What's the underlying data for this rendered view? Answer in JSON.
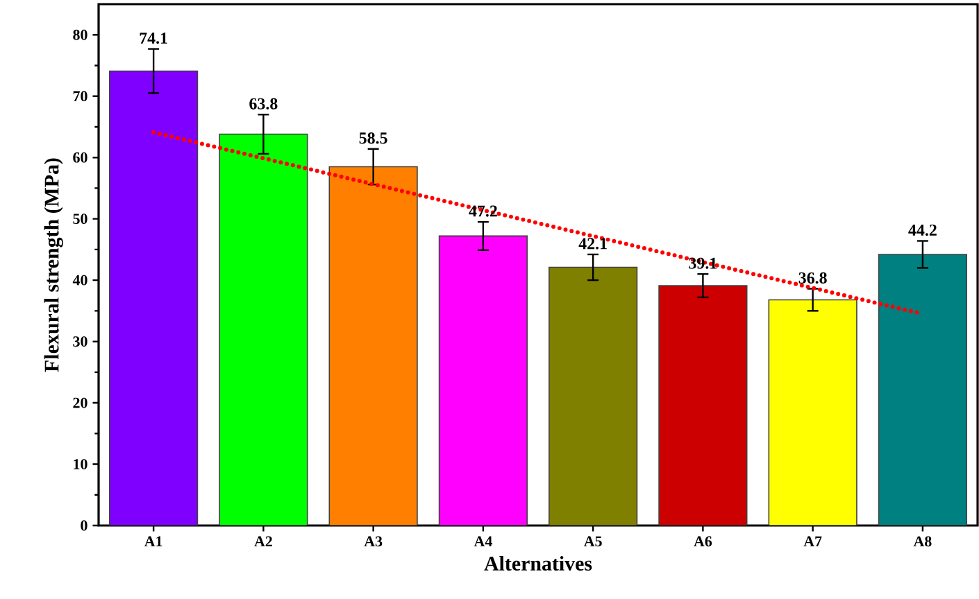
{
  "chart_data": {
    "type": "bar",
    "xlabel": "Alternatives",
    "ylabel": "Flexural strength (MPa)",
    "categories": [
      "A1",
      "A2",
      "A3",
      "A4",
      "A5",
      "A6",
      "A7",
      "A8"
    ],
    "values": [
      74.1,
      63.8,
      58.5,
      47.2,
      42.1,
      39.1,
      36.8,
      44.2
    ],
    "errors": [
      3.6,
      3.2,
      2.9,
      2.3,
      2.1,
      1.9,
      1.8,
      2.2
    ],
    "colors": [
      "#8000ff",
      "#00ff00",
      "#ff8000",
      "#ff00ff",
      "#808000",
      "#cc0000",
      "#ffff00",
      "#008080"
    ],
    "data_labels": true,
    "series": [
      {
        "type": "line",
        "x": [
          "A1",
          "A8"
        ],
        "values": [
          64.1,
          34.5
        ],
        "color": "#ff0000",
        "line_style": "dotted",
        "value_labels": [
          null,
          null
        ]
      }
    ],
    "ylim": [
      0,
      85
    ],
    "yticks": [
      0,
      10,
      20,
      30,
      40,
      50,
      60,
      70,
      80
    ]
  }
}
